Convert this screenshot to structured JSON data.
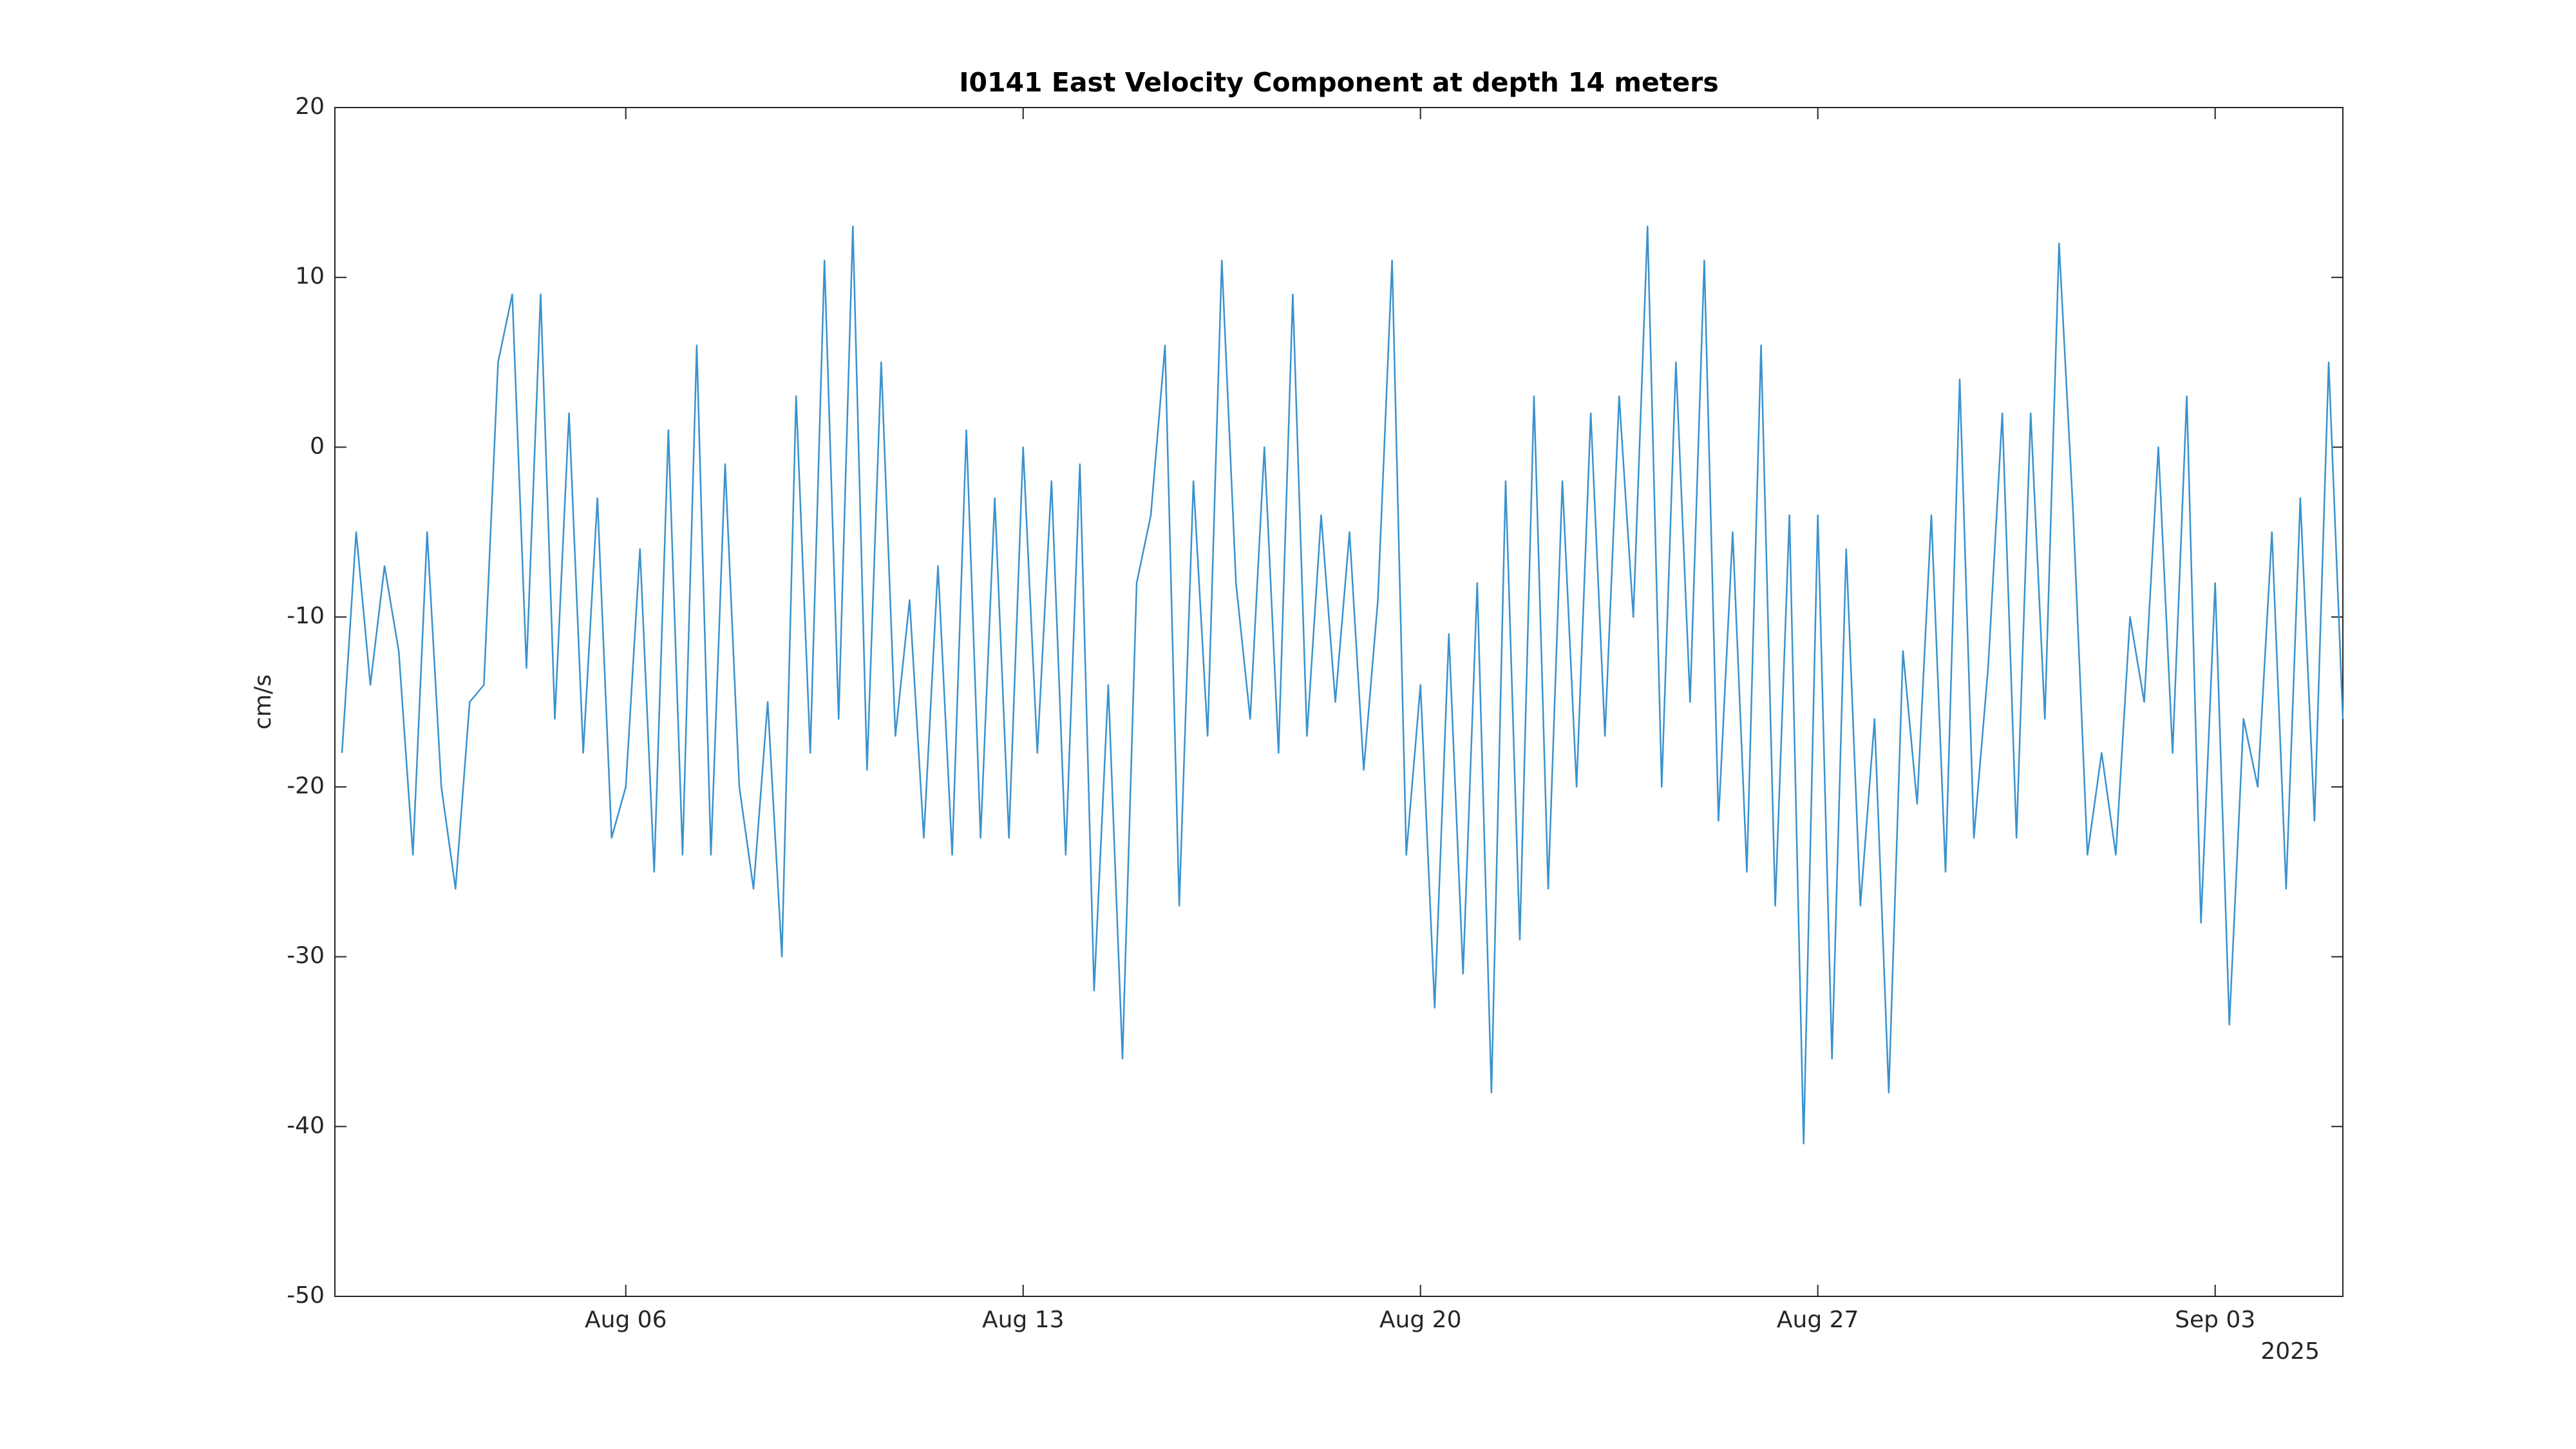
{
  "chart_data": {
    "type": "line",
    "title": "I0141 East Velocity Component at depth 14 meters",
    "ylabel": "cm/s",
    "x_secondary_label": "2025",
    "color": "#3a92cf",
    "x": [
      "2025-08-01T00:00",
      "2025-08-01T06:00",
      "2025-08-01T12:00",
      "2025-08-01T18:00",
      "2025-08-02T00:00",
      "2025-08-02T06:00",
      "2025-08-02T12:00",
      "2025-08-02T18:00",
      "2025-08-03T00:00",
      "2025-08-03T06:00",
      "2025-08-03T12:00",
      "2025-08-03T18:00",
      "2025-08-04T00:00",
      "2025-08-04T06:00",
      "2025-08-04T12:00",
      "2025-08-04T18:00",
      "2025-08-05T00:00",
      "2025-08-05T06:00",
      "2025-08-05T12:00",
      "2025-08-05T18:00",
      "2025-08-06T00:00",
      "2025-08-06T06:00",
      "2025-08-06T12:00",
      "2025-08-06T18:00",
      "2025-08-07T00:00",
      "2025-08-07T06:00",
      "2025-08-07T12:00",
      "2025-08-07T18:00",
      "2025-08-08T00:00",
      "2025-08-08T06:00",
      "2025-08-08T12:00",
      "2025-08-08T18:00",
      "2025-08-09T00:00",
      "2025-08-09T06:00",
      "2025-08-09T12:00",
      "2025-08-09T18:00",
      "2025-08-10T00:00",
      "2025-08-10T06:00",
      "2025-08-10T12:00",
      "2025-08-10T18:00",
      "2025-08-11T00:00",
      "2025-08-11T06:00",
      "2025-08-11T12:00",
      "2025-08-11T18:00",
      "2025-08-12T00:00",
      "2025-08-12T06:00",
      "2025-08-12T12:00",
      "2025-08-12T18:00",
      "2025-08-13T00:00",
      "2025-08-13T06:00",
      "2025-08-13T12:00",
      "2025-08-13T18:00",
      "2025-08-14T00:00",
      "2025-08-14T06:00",
      "2025-08-14T12:00",
      "2025-08-14T18:00",
      "2025-08-15T00:00",
      "2025-08-15T06:00",
      "2025-08-15T12:00",
      "2025-08-15T18:00",
      "2025-08-16T00:00",
      "2025-08-16T06:00",
      "2025-08-16T12:00",
      "2025-08-16T18:00",
      "2025-08-17T00:00",
      "2025-08-17T06:00",
      "2025-08-17T12:00",
      "2025-08-17T18:00",
      "2025-08-18T00:00",
      "2025-08-18T06:00",
      "2025-08-18T12:00",
      "2025-08-18T18:00",
      "2025-08-19T00:00",
      "2025-08-19T06:00",
      "2025-08-19T12:00",
      "2025-08-19T18:00",
      "2025-08-20T00:00",
      "2025-08-20T06:00",
      "2025-08-20T12:00",
      "2025-08-20T18:00",
      "2025-08-21T00:00",
      "2025-08-21T06:00",
      "2025-08-21T12:00",
      "2025-08-21T18:00",
      "2025-08-22T00:00",
      "2025-08-22T06:00",
      "2025-08-22T12:00",
      "2025-08-22T18:00",
      "2025-08-23T00:00",
      "2025-08-23T06:00",
      "2025-08-23T12:00",
      "2025-08-23T18:00",
      "2025-08-24T00:00",
      "2025-08-24T06:00",
      "2025-08-24T12:00",
      "2025-08-24T18:00",
      "2025-08-25T00:00",
      "2025-08-25T06:00",
      "2025-08-25T12:00",
      "2025-08-25T18:00",
      "2025-08-26T00:00",
      "2025-08-26T06:00",
      "2025-08-26T12:00",
      "2025-08-26T18:00",
      "2025-08-27T00:00",
      "2025-08-27T06:00",
      "2025-08-27T12:00",
      "2025-08-27T18:00",
      "2025-08-28T00:00",
      "2025-08-28T06:00",
      "2025-08-28T12:00",
      "2025-08-28T18:00",
      "2025-08-29T00:00",
      "2025-08-29T06:00",
      "2025-08-29T12:00",
      "2025-08-29T18:00",
      "2025-08-30T00:00",
      "2025-08-30T06:00",
      "2025-08-30T12:00",
      "2025-08-30T18:00",
      "2025-08-31T00:00",
      "2025-08-31T06:00",
      "2025-08-31T12:00",
      "2025-08-31T18:00",
      "2025-09-01T00:00",
      "2025-09-01T06:00",
      "2025-09-01T12:00",
      "2025-09-01T18:00",
      "2025-09-02T00:00",
      "2025-09-02T06:00",
      "2025-09-02T12:00",
      "2025-09-02T18:00",
      "2025-09-03T00:00",
      "2025-09-03T06:00",
      "2025-09-03T12:00",
      "2025-09-03T18:00",
      "2025-09-04T00:00",
      "2025-09-04T06:00",
      "2025-09-04T12:00",
      "2025-09-04T18:00",
      "2025-09-05T00:00",
      "2025-09-05T06:00"
    ],
    "values": [
      -18,
      -5,
      -14,
      -7,
      -12,
      -24,
      -5,
      -20,
      -26,
      -15,
      -14,
      5,
      9,
      -13,
      9,
      -16,
      2,
      -18,
      -3,
      -23,
      -20,
      -6,
      -25,
      1,
      -24,
      6,
      -24,
      -1,
      -20,
      -26,
      -15,
      -30,
      3,
      -18,
      11,
      -16,
      13,
      -19,
      5,
      -17,
      -9,
      -23,
      -7,
      -24,
      1,
      -23,
      -3,
      -23,
      0,
      -18,
      -2,
      -24,
      -1,
      -32,
      -14,
      -36,
      -8,
      -4,
      6,
      -27,
      -2,
      -17,
      11,
      -8,
      -16,
      0,
      -18,
      9,
      -17,
      -4,
      -15,
      -5,
      -19,
      -9,
      11,
      -24,
      -14,
      -33,
      -11,
      -31,
      -8,
      -38,
      -2,
      -29,
      3,
      -26,
      -2,
      -20,
      2,
      -17,
      3,
      -10,
      13,
      -20,
      5,
      -15,
      11,
      -22,
      -5,
      -25,
      6,
      -27,
      -4,
      -41,
      -4,
      -36,
      -6,
      -27,
      -16,
      -38,
      -12,
      -21,
      -4,
      -25,
      4,
      -23,
      -13,
      2,
      -23,
      2,
      -16,
      12,
      -4,
      -24,
      -18,
      -24,
      -10,
      -15,
      0,
      -18,
      3,
      -28,
      -8,
      -34,
      -16,
      -20,
      -5,
      -26,
      -3,
      -22,
      5,
      -16
    ],
    "xlim": [
      "2025-07-31T21:00",
      "2025-09-05T06:00"
    ],
    "xticks": [
      {
        "value": "2025-08-06T00:00",
        "label": "Aug 06"
      },
      {
        "value": "2025-08-13T00:00",
        "label": "Aug 13"
      },
      {
        "value": "2025-08-20T00:00",
        "label": "Aug 20"
      },
      {
        "value": "2025-08-27T00:00",
        "label": "Aug 27"
      },
      {
        "value": "2025-09-03T00:00",
        "label": "Sep 03"
      }
    ],
    "ylim": [
      -50,
      20
    ],
    "yticks": [
      -50,
      -40,
      -30,
      -20,
      -10,
      0,
      10,
      20
    ]
  }
}
